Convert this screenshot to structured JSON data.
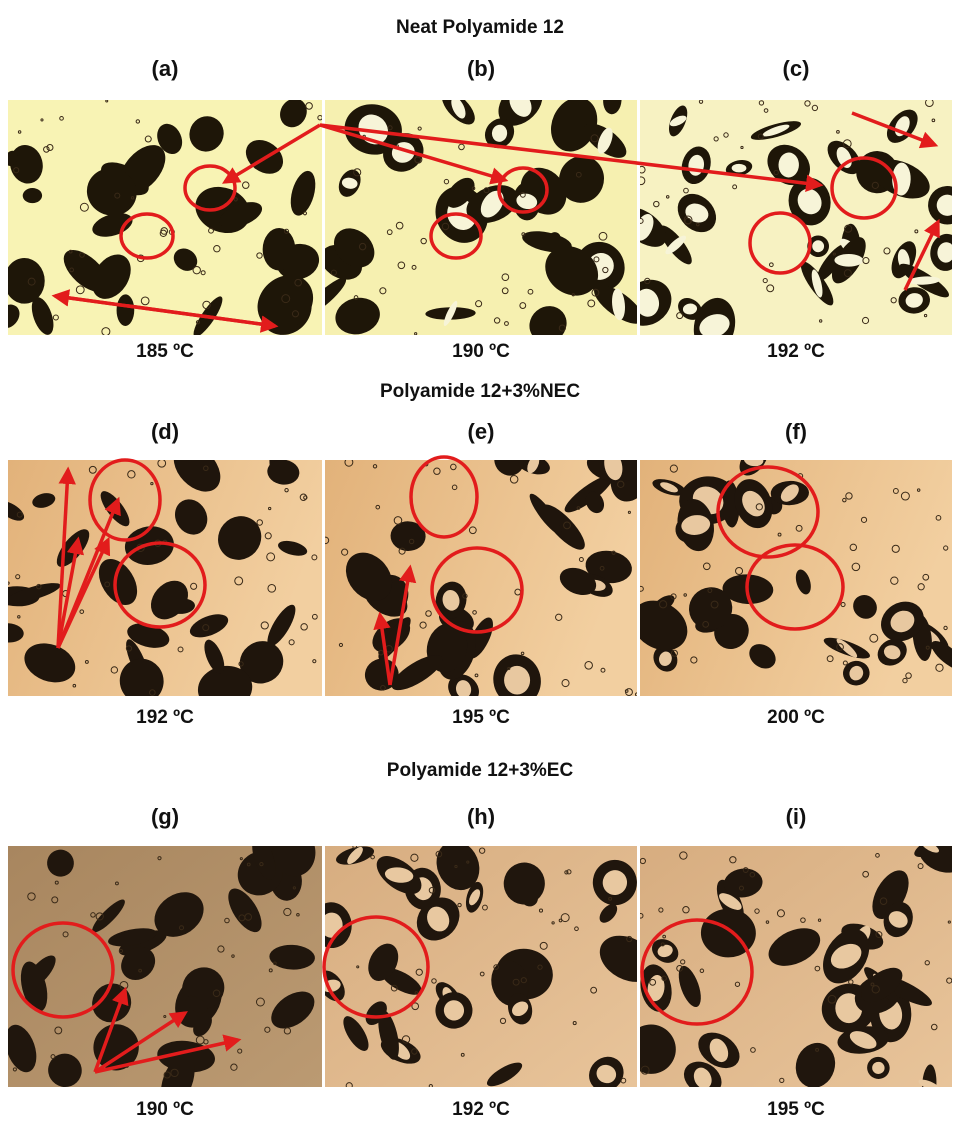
{
  "sections": [
    {
      "title": "Neat Polyamide 12",
      "panels": [
        {
          "label": "(a)",
          "temperature": "185 ºC"
        },
        {
          "label": "(b)",
          "temperature": "190 ºC"
        },
        {
          "label": "(c)",
          "temperature": "192 ºC"
        }
      ]
    },
    {
      "title": "Polyamide 12+3%NEC",
      "panels": [
        {
          "label": "(d)",
          "temperature": "192 ºC"
        },
        {
          "label": "(e)",
          "temperature": "195 ºC"
        },
        {
          "label": "(f)",
          "temperature": "200 ºC"
        }
      ]
    },
    {
      "title": "Polyamide 12+3%EC",
      "panels": [
        {
          "label": "(g)",
          "temperature": "190 ºC"
        },
        {
          "label": "(h)",
          "temperature": "192 ºC"
        },
        {
          "label": "(i)",
          "temperature": "195 ºC"
        }
      ]
    }
  ]
}
